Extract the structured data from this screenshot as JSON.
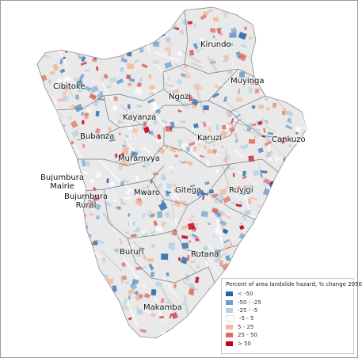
{
  "provinces": [
    {
      "id": "kirundo",
      "name": "Kirundo"
    },
    {
      "id": "cibitoke",
      "name": "Cibitoke"
    },
    {
      "id": "muyinga",
      "name": "Muyinga"
    },
    {
      "id": "ngozi",
      "name": "Ngozi"
    },
    {
      "id": "kayanza",
      "name": "Kayanza"
    },
    {
      "id": "bubanza",
      "name": "Bubanza"
    },
    {
      "id": "karuzi",
      "name": "Karuzi"
    },
    {
      "id": "cankuzo",
      "name": "Cankuzo"
    },
    {
      "id": "muramvya",
      "name": "Muramvya"
    },
    {
      "id": "bujumbura-mairie",
      "name": "Bujumbura\nMairie"
    },
    {
      "id": "mwaro",
      "name": "Mwaro"
    },
    {
      "id": "gitega",
      "name": "Gitega"
    },
    {
      "id": "ruyigi",
      "name": "Ruyigi"
    },
    {
      "id": "bujumbura-rural",
      "name": "Bujumbura\nRural"
    },
    {
      "id": "bururi",
      "name": "Bururi"
    },
    {
      "id": "rutana",
      "name": "Rutana"
    },
    {
      "id": "makamba",
      "name": "Makamba"
    }
  ],
  "legend": {
    "title": "Percent of area landslide hazard, % change 2050",
    "classes": [
      {
        "label": "< -50",
        "color": "#2166ac"
      },
      {
        "label": "-50 - -25",
        "color": "#6a9fca"
      },
      {
        "label": "-25 - -5",
        "color": "#b4d1e6"
      },
      {
        "label": "-5 - 5",
        "color": "#ffffff"
      },
      {
        "label": "5 - 25",
        "color": "#f2b9a0"
      },
      {
        "label": "25 - 50",
        "color": "#df6b62"
      },
      {
        "label": "> 50",
        "color": "#c4001a"
      }
    ]
  },
  "colors": {
    "terrain": "#e9e9e9",
    "province_border": "#7a7a7a",
    "country_border": "#8c8c8c"
  }
}
